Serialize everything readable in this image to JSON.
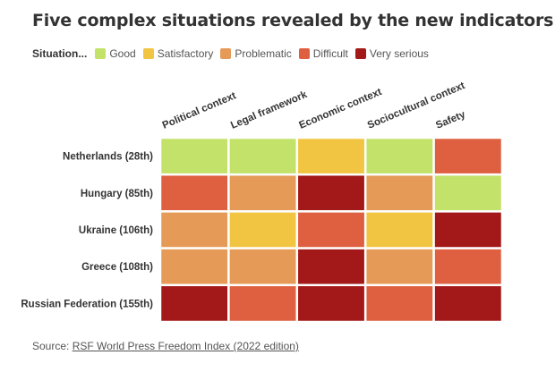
{
  "chart_data": {
    "type": "heatmap",
    "title": "Five complex situations revealed by the new indicators",
    "legend_title": "Situation...",
    "levels": [
      {
        "key": "good",
        "label": "Good",
        "color": "#c3e26a"
      },
      {
        "key": "satisfactory",
        "label": "Satisfactory",
        "color": "#f1c541"
      },
      {
        "key": "problematic",
        "label": "Problematic",
        "color": "#e59a57"
      },
      {
        "key": "difficult",
        "label": "Difficult",
        "color": "#de6040"
      },
      {
        "key": "very_serious",
        "label": "Very serious",
        "color": "#a31818"
      }
    ],
    "columns": [
      "Political context",
      "Legal framework",
      "Economic context",
      "Sociocultural context",
      "Safety"
    ],
    "rows": [
      "Netherlands (28th)",
      "Hungary (85th)",
      "Ukraine (106th)",
      "Greece (108th)",
      "Russian Federation (155th)"
    ],
    "values": [
      [
        "good",
        "good",
        "satisfactory",
        "good",
        "difficult"
      ],
      [
        "difficult",
        "problematic",
        "very_serious",
        "problematic",
        "good"
      ],
      [
        "problematic",
        "satisfactory",
        "difficult",
        "satisfactory",
        "very_serious"
      ],
      [
        "problematic",
        "problematic",
        "very_serious",
        "problematic",
        "difficult"
      ],
      [
        "very_serious",
        "difficult",
        "very_serious",
        "difficult",
        "very_serious"
      ]
    ],
    "legend_position": "top-left",
    "grid": true
  },
  "source": {
    "prefix": "Source:",
    "link_text": "RSF World Press Freedom Index (2022 edition)"
  }
}
